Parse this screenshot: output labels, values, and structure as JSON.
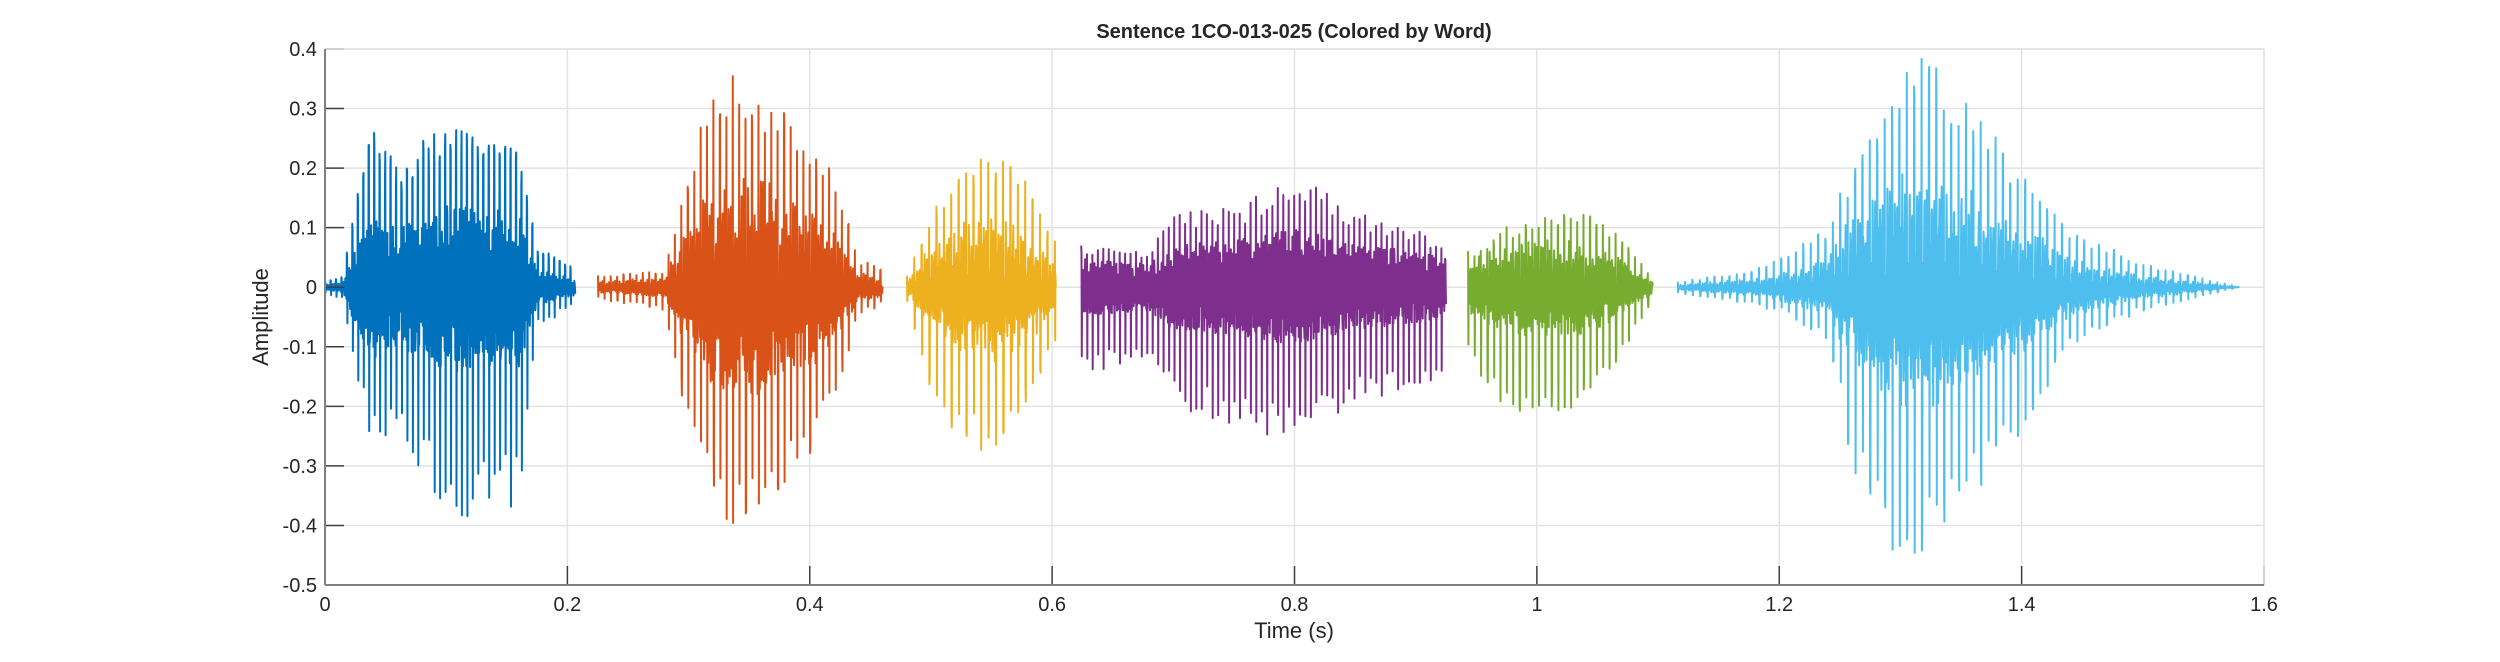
{
  "chart_data": {
    "type": "line",
    "title": "Sentence 1CO-013-025 (Colored by Word)",
    "xlabel": "Time (s)",
    "ylabel": "Amplitude",
    "xlim": [
      0,
      1.6
    ],
    "ylim": [
      -0.5,
      0.4
    ],
    "xticks": [
      "0",
      "0.2",
      "0.4",
      "0.6",
      "0.8",
      "1",
      "1.2",
      "1.4",
      "1.6"
    ],
    "yticks": [
      "-0.5",
      "-0.4",
      "-0.3",
      "-0.2",
      "-0.1",
      "0",
      "0.1",
      "0.2",
      "0.3",
      "0.4"
    ],
    "grid": true,
    "legend": "none",
    "series_note_envelope_format": "[time_s, max_amplitude, min_amplitude]",
    "series": [
      {
        "color": "#0072BD",
        "envelope": [
          [
            0,
            0.01,
            -0.01
          ],
          [
            0.015,
            0.02,
            -0.02
          ],
          [
            0.025,
            0.15,
            -0.15
          ],
          [
            0.04,
            0.28,
            -0.27
          ],
          [
            0.06,
            0.2,
            -0.25
          ],
          [
            0.09,
            0.27,
            -0.35
          ],
          [
            0.12,
            0.27,
            -0.41
          ],
          [
            0.14,
            0.25,
            -0.35
          ],
          [
            0.16,
            0.24,
            -0.38
          ],
          [
            0.175,
            0.07,
            -0.07
          ],
          [
            0.207,
            0.03,
            -0.03
          ]
        ]
      },
      {
        "color": "#D95319",
        "envelope": [
          [
            0.225,
            0.02,
            -0.02
          ],
          [
            0.28,
            0.03,
            -0.04
          ],
          [
            0.295,
            0.15,
            -0.2
          ],
          [
            0.31,
            0.27,
            -0.3
          ],
          [
            0.33,
            0.37,
            -0.4
          ],
          [
            0.36,
            0.34,
            -0.4
          ],
          [
            0.4,
            0.25,
            -0.3
          ],
          [
            0.42,
            0.2,
            -0.2
          ],
          [
            0.44,
            0.05,
            -0.05
          ],
          [
            0.46,
            0.03,
            -0.03
          ]
        ]
      },
      {
        "color": "#EDB120",
        "envelope": [
          [
            0.48,
            0.02,
            -0.02
          ],
          [
            0.495,
            0.1,
            -0.15
          ],
          [
            0.52,
            0.2,
            -0.25
          ],
          [
            0.55,
            0.23,
            -0.3
          ],
          [
            0.58,
            0.18,
            -0.2
          ],
          [
            0.603,
            0.08,
            -0.1
          ]
        ]
      },
      {
        "color": "#7E2F8E",
        "envelope": [
          [
            0.624,
            0.07,
            -0.15
          ],
          [
            0.68,
            0.06,
            -0.12
          ],
          [
            0.7,
            0.13,
            -0.2
          ],
          [
            0.76,
            0.14,
            -0.24
          ],
          [
            0.8,
            0.2,
            -0.26
          ],
          [
            0.85,
            0.13,
            -0.2
          ],
          [
            0.9,
            0.1,
            -0.18
          ],
          [
            0.925,
            0.07,
            -0.15
          ]
        ]
      },
      {
        "color": "#77AC30",
        "envelope": [
          [
            0.943,
            0.06,
            -0.12
          ],
          [
            0.97,
            0.1,
            -0.2
          ],
          [
            1.0,
            0.12,
            -0.22
          ],
          [
            1.04,
            0.14,
            -0.2
          ],
          [
            1.07,
            0.08,
            -0.12
          ],
          [
            1.096,
            0.02,
            -0.02
          ]
        ]
      },
      {
        "color": "#4DBEEE",
        "envelope": [
          [
            1.116,
            0.01,
            -0.01
          ],
          [
            1.18,
            0.03,
            -0.03
          ],
          [
            1.21,
            0.06,
            -0.05
          ],
          [
            1.24,
            0.1,
            -0.1
          ],
          [
            1.26,
            0.22,
            -0.3
          ],
          [
            1.3,
            0.35,
            -0.49
          ],
          [
            1.32,
            0.39,
            -0.45
          ],
          [
            1.36,
            0.3,
            -0.35
          ],
          [
            1.4,
            0.2,
            -0.25
          ],
          [
            1.44,
            0.1,
            -0.1
          ],
          [
            1.5,
            0.04,
            -0.04
          ],
          [
            1.58,
            0.0,
            0.0
          ]
        ]
      }
    ]
  }
}
